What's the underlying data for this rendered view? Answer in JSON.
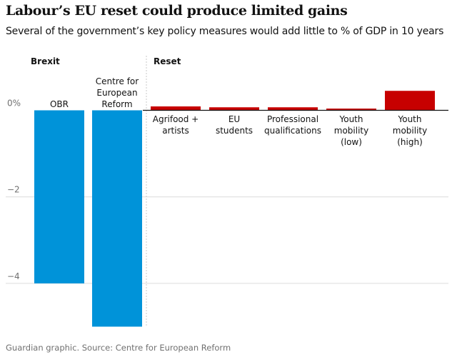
{
  "title": "Labour’s EU reset could produce limited gains",
  "subtitle": "Several of the government’s key policy measures would add little to % of GDP in 10 years",
  "footer": "Guardian graphic. Source: Centre for European Reform",
  "chart_data": {
    "type": "bar",
    "title": "Labour’s EU reset could produce limited gains",
    "subtitle": "Several of the government’s key policy measures would add little to % of GDP in 10 years",
    "ylabel": "",
    "ylim": [
      -5,
      0.5
    ],
    "yticks": [
      0,
      -2,
      -4
    ],
    "ytick_labels": [
      "0%",
      "−2",
      "−4"
    ],
    "grid": true,
    "groups": [
      {
        "name": "Brexit",
        "color": "#0093d9",
        "categories": [
          [
            "OBR"
          ],
          [
            "Centre for",
            "European",
            "Reform"
          ]
        ],
        "values": [
          -4.0,
          -5.0
        ]
      },
      {
        "name": "Reset",
        "color": "#c70000",
        "categories": [
          [
            "Agrifood +",
            "artists"
          ],
          [
            "EU",
            "students"
          ],
          [
            "Professional",
            "qualifications"
          ],
          [
            "Youth",
            "mobility",
            "(low)"
          ],
          [
            "Youth",
            "mobility",
            "(high)"
          ]
        ],
        "values": [
          0.09,
          0.07,
          0.07,
          0.04,
          0.45
        ]
      }
    ]
  }
}
